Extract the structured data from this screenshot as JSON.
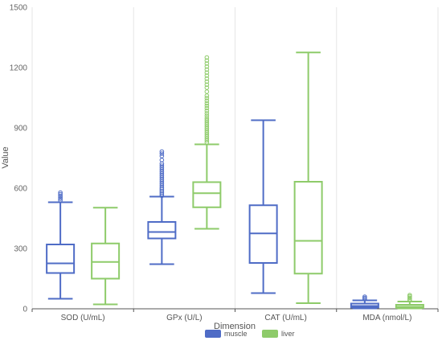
{
  "chart_data": {
    "type": "boxplot",
    "title": "",
    "xlabel": "Dimension",
    "ylabel": "Value",
    "ylim": [
      0,
      1500
    ],
    "yticks": [
      0,
      300,
      600,
      900,
      1200,
      1500
    ],
    "grid": {
      "horizontal": false,
      "vertical": true
    },
    "legend_position": "bottom-center",
    "categories": [
      "SOD (U/mL)",
      "GPx (U/L)",
      "CAT (U/mL)",
      "MDA (nmol/L)"
    ],
    "series": [
      {
        "name": "muscle",
        "color": "#4f6cc6",
        "boxes": [
          {
            "min": 50,
            "q1": 178,
            "median": 226,
            "q3": 320,
            "max": 530,
            "outliers": [
              540,
              548,
              555,
              562,
              570,
              578
            ]
          },
          {
            "min": 222,
            "q1": 350,
            "median": 382,
            "q3": 432,
            "max": 558,
            "outliers": [
              562,
              570,
              578,
              586,
              594,
              602,
              612,
              622,
              632,
              642,
              652,
              662,
              672,
              682,
              692,
              702,
              712,
              722,
              740,
              760,
              772,
              782
            ]
          },
          {
            "min": 78,
            "q1": 228,
            "median": 375,
            "q3": 515,
            "max": 938,
            "outliers": []
          },
          {
            "min": 2,
            "q1": 6,
            "median": 14,
            "q3": 26,
            "max": 42,
            "outliers": [
              48,
              54,
              60
            ]
          }
        ]
      },
      {
        "name": "liver",
        "color": "#8ecb6a",
        "boxes": [
          {
            "min": 22,
            "q1": 150,
            "median": 233,
            "q3": 325,
            "max": 503,
            "outliers": []
          },
          {
            "min": 398,
            "q1": 505,
            "median": 575,
            "q3": 630,
            "max": 818,
            "outliers": [
              828,
              838,
              848,
              858,
              868,
              878,
              888,
              898,
              908,
              918,
              928,
              938,
              948,
              960,
              972,
              985,
              998,
              1010,
              1022,
              1035,
              1048,
              1060,
              1080,
              1100,
              1115,
              1130,
              1145,
              1160,
              1175,
              1190,
              1205,
              1220,
              1235,
              1250
            ]
          },
          {
            "min": 28,
            "q1": 175,
            "median": 338,
            "q3": 632,
            "max": 1275,
            "outliers": []
          },
          {
            "min": 2,
            "q1": 4,
            "median": 10,
            "q3": 20,
            "max": 36,
            "outliers": [
              42,
              48,
              55,
              62,
              68
            ]
          }
        ]
      }
    ]
  }
}
